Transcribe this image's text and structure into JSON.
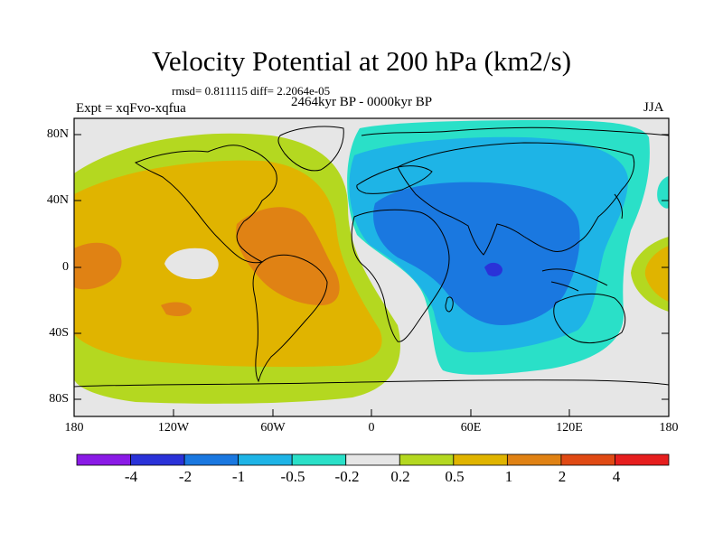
{
  "title": "Velocity Potential at 200 hPa (km2/s)",
  "stats": "rmsd= 0.811115 diff= 2.2064e-05",
  "experiment": "Expt = xqFvo-xqfua",
  "period": "2464kyr BP - 0000kyr BP",
  "season": "JJA",
  "axes": {
    "lat_labels": [
      "80N",
      "40N",
      "0",
      "40S",
      "80S"
    ],
    "lon_labels": [
      "180",
      "120W",
      "60W",
      "0",
      "60E",
      "120E",
      "180"
    ]
  },
  "colorbar": {
    "labels": [
      "-4",
      "-2",
      "-1",
      "-0.5",
      "-0.2",
      "0.2",
      "0.5",
      "1",
      "2",
      "4"
    ],
    "colors": [
      "#8a1ae6",
      "#2a32d8",
      "#1a78e0",
      "#1eb4e6",
      "#2ae0c8",
      "#e6e6e6",
      "#b4d820",
      "#e0b400",
      "#e08214",
      "#e04a14",
      "#e61e1e"
    ]
  }
}
